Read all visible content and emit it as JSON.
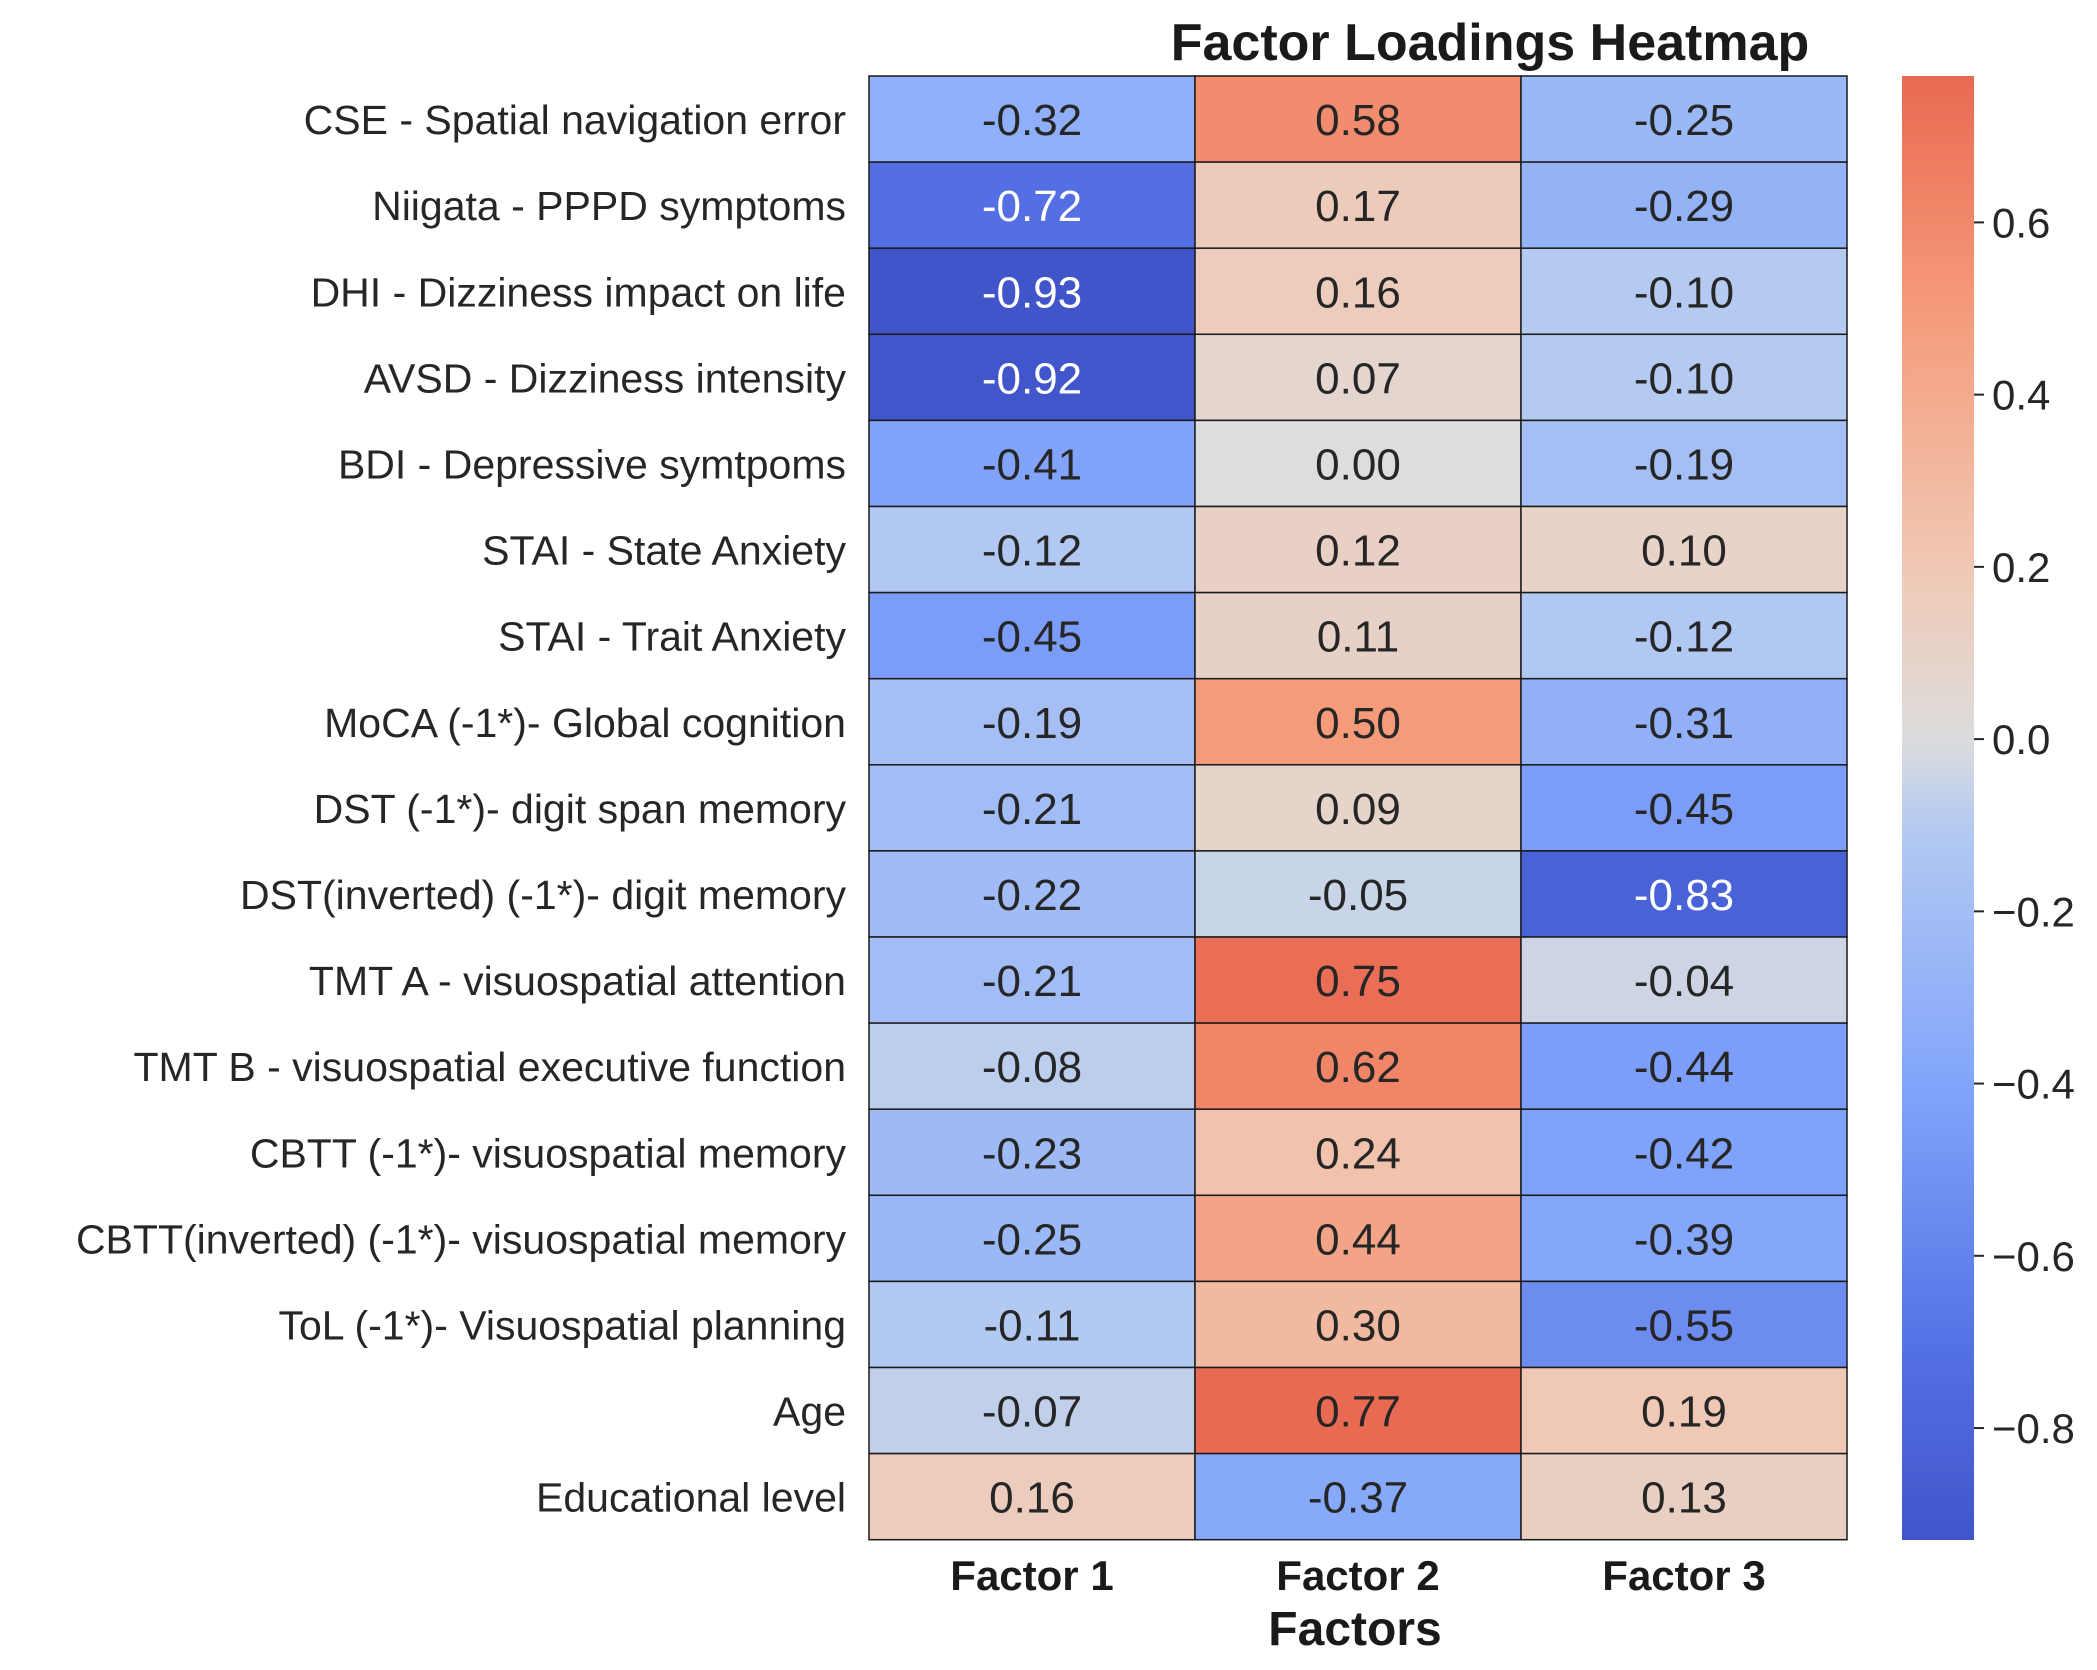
{
  "chart_data": {
    "type": "heatmap",
    "title": "Factor Loadings Heatmap",
    "xlabel": "Factors",
    "ylabel": "",
    "columns": [
      "Factor 1",
      "Factor 2",
      "Factor 3"
    ],
    "rows": [
      "CSE - Spatial navigation error",
      "Niigata - PPPD symptoms",
      "DHI - Dizziness impact on life",
      "AVSD - Dizziness intensity",
      "BDI - Depressive symtpoms",
      "STAI - State Anxiety",
      "STAI - Trait Anxiety",
      "MoCA (-1*)- Global cognition",
      "DST (-1*)- digit span memory",
      "DST(inverted) (-1*)- digit memory",
      "TMT A - visuospatial attention",
      "TMT B - visuospatial executive function",
      "CBTT (-1*)- visuospatial memory",
      "CBTT(inverted) (-1*)- visuospatial memory",
      "ToL (-1*)- Visuospatial planning",
      "Age",
      "Educational level"
    ],
    "values": [
      [
        -0.32,
        0.58,
        -0.25
      ],
      [
        -0.72,
        0.17,
        -0.29
      ],
      [
        -0.93,
        0.16,
        -0.1
      ],
      [
        -0.92,
        0.07,
        -0.1
      ],
      [
        -0.41,
        0.0,
        -0.19
      ],
      [
        -0.12,
        0.12,
        0.1
      ],
      [
        -0.45,
        0.11,
        -0.12
      ],
      [
        -0.19,
        0.5,
        -0.31
      ],
      [
        -0.21,
        0.09,
        -0.45
      ],
      [
        -0.22,
        -0.05,
        -0.83
      ],
      [
        -0.21,
        0.75,
        -0.04
      ],
      [
        -0.08,
        0.62,
        -0.44
      ],
      [
        -0.23,
        0.24,
        -0.42
      ],
      [
        -0.25,
        0.44,
        -0.39
      ],
      [
        -0.11,
        0.3,
        -0.55
      ],
      [
        -0.07,
        0.77,
        0.19
      ],
      [
        0.16,
        -0.37,
        0.13
      ]
    ],
    "colorbar": {
      "cmap": "coolwarm",
      "vmin": -0.93,
      "vmax": 0.77,
      "ticks": [
        0.6,
        0.4,
        0.2,
        0.0,
        -0.2,
        -0.4,
        -0.6,
        -0.8
      ],
      "tick_labels": [
        "0.6",
        "0.4",
        "0.2",
        "0.0",
        "−0.2",
        "−0.4",
        "−0.6",
        "−0.8"
      ]
    },
    "legend": "colorbar right",
    "grid": false
  }
}
